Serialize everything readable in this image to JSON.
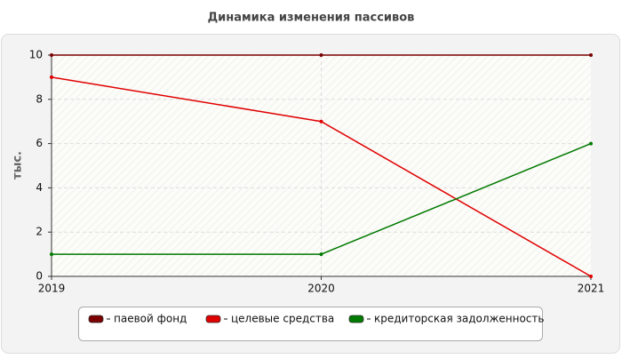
{
  "chart_data": {
    "type": "line",
    "title": "Динамика изменения пассивов",
    "y_label": "тыс.",
    "categories": [
      "2019",
      "2020",
      "2021"
    ],
    "series": [
      {
        "name": "паевой фонд",
        "color": "#7b0000",
        "values": [
          10,
          10,
          10
        ]
      },
      {
        "name": "целевые средства",
        "color": "#e00000",
        "values": [
          9,
          7,
          0
        ]
      },
      {
        "name": "кредиторская задолженность",
        "color": "#007a00",
        "values": [
          1,
          1,
          6
        ]
      }
    ],
    "ylim": [
      0,
      10
    ],
    "yticks": [
      0,
      2,
      4,
      6,
      8,
      10
    ],
    "grid": true,
    "legend": "bottom"
  }
}
